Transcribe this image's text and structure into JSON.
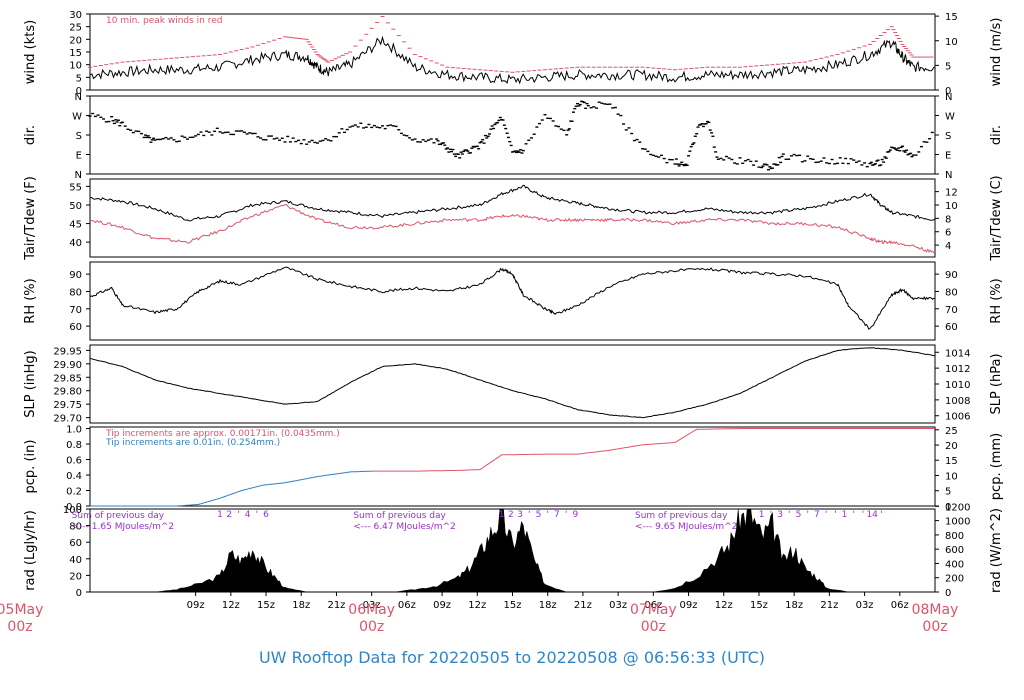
{
  "footer": {
    "title": "UW Rooftop Data for 20220505  to  20220508 @ 06:56:33  (UTC)"
  },
  "colors": {
    "black": "#000000",
    "red": "#df536b",
    "blue": "#2f7fc1",
    "purple": "#9932cc",
    "footer": "#2e86c8"
  },
  "chart_data": [
    {
      "id": "wind",
      "type": "line",
      "ylabel": "wind (kts)",
      "ylabel_right": "wind (m/s)",
      "ylim": [
        0,
        30
      ],
      "ticks_left": [
        0,
        5,
        10,
        15,
        20,
        25,
        30
      ],
      "ticks_right_labels": [
        "0",
        "5",
        "10",
        "15"
      ],
      "ticks_right_at": [
        0,
        9.72,
        19.44,
        29.16
      ],
      "annotation": "10 min. peak winds in red",
      "x": [
        0,
        3,
        6,
        9,
        12,
        15,
        18,
        20,
        21,
        22,
        24,
        27,
        30,
        33,
        36,
        39,
        42,
        45,
        48,
        51,
        54,
        57,
        60,
        63,
        66,
        69,
        72,
        74,
        75,
        76,
        78
      ],
      "series": [
        {
          "color": "black",
          "values": [
            6,
            7,
            8,
            8,
            9,
            12,
            14,
            13,
            9,
            7,
            10,
            20,
            9,
            6,
            5,
            4,
            5,
            6,
            6,
            6,
            5,
            6,
            6,
            7,
            8,
            10,
            14,
            19,
            13,
            9,
            9
          ]
        },
        {
          "color": "red",
          "values": [
            9,
            11,
            12,
            13,
            14,
            17,
            21,
            20,
            14,
            11,
            15,
            29,
            14,
            9,
            8,
            7,
            8,
            9,
            9,
            9,
            8,
            9,
            9,
            10,
            11,
            14,
            18,
            25,
            18,
            13,
            13
          ]
        }
      ]
    },
    {
      "id": "dir",
      "type": "scatter",
      "ylabel": "dir.",
      "ylabel_right": "dir.",
      "ticks_labels": [
        "N",
        "E",
        "S",
        "W",
        "N"
      ],
      "ylim": [
        0,
        360
      ],
      "x": [
        0,
        2,
        3,
        5,
        6,
        8,
        10,
        12,
        14,
        16,
        18,
        20,
        22,
        24,
        26,
        28,
        30,
        32,
        33,
        34,
        35,
        36,
        37,
        38,
        39,
        40,
        42,
        44,
        45,
        46,
        48,
        50,
        52,
        54,
        55,
        56,
        57,
        58,
        60,
        62,
        63,
        64,
        66,
        68,
        70,
        72,
        73,
        74,
        75,
        76,
        78
      ],
      "values": [
        270,
        250,
        230,
        170,
        150,
        160,
        180,
        200,
        190,
        170,
        160,
        150,
        160,
        220,
        220,
        215,
        160,
        150,
        120,
        80,
        110,
        130,
        200,
        260,
        100,
        110,
        270,
        180,
        330,
        310,
        330,
        180,
        80,
        60,
        30,
        200,
        250,
        70,
        60,
        40,
        30,
        80,
        70,
        60,
        60,
        45,
        50,
        110,
        120,
        80,
        200
      ]
    },
    {
      "id": "temp",
      "type": "line",
      "ylabel": "Tair/Tdew (F)",
      "ylabel_right": "Tair/Tdew (C)",
      "ylim": [
        36,
        57
      ],
      "ticks_left": [
        40,
        45,
        50,
        55
      ],
      "ticks_right_labels": [
        "4",
        "6",
        "8",
        "10",
        "12"
      ],
      "ticks_right_at": [
        39.2,
        42.8,
        46.4,
        50,
        53.6
      ],
      "x": [
        0,
        3,
        6,
        9,
        12,
        15,
        18,
        21,
        24,
        27,
        30,
        33,
        36,
        38,
        40,
        42,
        44,
        46,
        48,
        51,
        54,
        57,
        60,
        63,
        66,
        69,
        72,
        73,
        74,
        76,
        78
      ],
      "series": [
        {
          "color": "black",
          "values": [
            52,
            51,
            49,
            46,
            47,
            50,
            51,
            49,
            48,
            47,
            48,
            49,
            50,
            53,
            55,
            52,
            51,
            50,
            49,
            48,
            48,
            49,
            48,
            48,
            49,
            51,
            53,
            50,
            48,
            47,
            46
          ]
        },
        {
          "color": "red",
          "values": [
            46,
            44,
            41,
            40,
            43,
            47,
            50,
            46,
            44,
            44,
            45,
            46,
            46,
            47,
            47,
            46,
            46,
            46,
            46,
            46,
            45,
            46,
            46,
            45,
            45,
            44,
            41,
            40,
            40,
            39,
            37
          ]
        }
      ]
    },
    {
      "id": "rh",
      "type": "line",
      "ylabel": "RH (%)",
      "ylabel_right": "RH (%)",
      "ylim": [
        52,
        97
      ],
      "ticks_left": [
        60,
        70,
        80,
        90
      ],
      "ticks_right_labels": [
        "60",
        "70",
        "80",
        "90"
      ],
      "ticks_right_at": [
        60,
        70,
        80,
        90
      ],
      "x": [
        0,
        2,
        3,
        6,
        8,
        10,
        12,
        14,
        18,
        21,
        24,
        27,
        30,
        33,
        36,
        38,
        39,
        40,
        42,
        43,
        45,
        48,
        51,
        54,
        57,
        60,
        63,
        66,
        69,
        70,
        72,
        74,
        75,
        76,
        78
      ],
      "values": [
        77,
        82,
        72,
        68,
        70,
        80,
        86,
        84,
        94,
        87,
        83,
        80,
        82,
        80,
        84,
        93,
        90,
        78,
        70,
        67,
        72,
        83,
        90,
        92,
        93,
        91,
        90,
        89,
        84,
        72,
        58,
        78,
        81,
        76,
        76
      ]
    },
    {
      "id": "slp",
      "type": "line",
      "ylabel": "SLP (inHg)",
      "ylabel_right": "SLP (hPa)",
      "ylim": [
        29.68,
        29.97
      ],
      "ticks_left_labels": [
        "29.70",
        "29.75",
        "29.80",
        "29.85",
        "29.90",
        "29.95"
      ],
      "ticks_left": [
        29.7,
        29.75,
        29.8,
        29.85,
        29.9,
        29.95
      ],
      "ticks_right_labels": [
        "1006",
        "1008",
        "1010",
        "1012",
        "1014"
      ],
      "ticks_right_at": [
        29.707,
        29.766,
        29.825,
        29.884,
        29.943
      ],
      "x": [
        0,
        3,
        6,
        9,
        12,
        15,
        18,
        21,
        24,
        27,
        30,
        33,
        36,
        39,
        42,
        45,
        48,
        51,
        54,
        57,
        60,
        63,
        66,
        69,
        72,
        75,
        78
      ],
      "values": [
        29.92,
        29.89,
        29.84,
        29.81,
        29.79,
        29.77,
        29.75,
        29.76,
        29.83,
        29.89,
        29.9,
        29.88,
        29.84,
        29.8,
        29.77,
        29.73,
        29.71,
        29.7,
        29.72,
        29.75,
        29.79,
        29.85,
        29.91,
        29.95,
        29.96,
        29.95,
        29.93
      ]
    },
    {
      "id": "pcp",
      "type": "line",
      "ylabel": "pcp. (in)",
      "ylabel_right": "pcp. (mm)",
      "ylim": [
        0,
        1.02
      ],
      "ticks_left_labels": [
        "0.0",
        "0.2",
        "0.4",
        "0.6",
        "0.8",
        "1.0"
      ],
      "ticks_left": [
        0,
        0.2,
        0.4,
        0.6,
        0.8,
        1.0
      ],
      "ticks_right_labels": [
        "0",
        "5",
        "10",
        "15",
        "20",
        "25"
      ],
      "ticks_right_at": [
        0,
        0.197,
        0.394,
        0.591,
        0.787,
        0.984
      ],
      "annotations": [
        "Tip increments are approx. 0.00171in. (0.0435mm.)",
        "Tip increments are 0.01in. (0.254mm.)"
      ],
      "series": [
        {
          "color": "blue",
          "x": [
            0,
            8,
            10,
            12,
            14,
            16,
            18,
            21,
            24,
            26
          ],
          "values": [
            0,
            0,
            0.02,
            0.1,
            0.2,
            0.27,
            0.3,
            0.38,
            0.44,
            0.45
          ]
        },
        {
          "color": "red",
          "x": [
            26,
            30,
            34,
            36,
            38,
            42,
            45,
            48,
            51,
            54,
            56,
            60,
            66,
            78
          ],
          "values": [
            0.45,
            0.45,
            0.46,
            0.47,
            0.66,
            0.67,
            0.67,
            0.72,
            0.79,
            0.82,
            0.99,
            1.0,
            1.0,
            1.0
          ]
        }
      ]
    },
    {
      "id": "rad",
      "type": "area",
      "ylabel": "rad (Lgly/hr)",
      "ylabel_right": "rad (W/m^2)",
      "ylim": [
        0,
        100
      ],
      "ticks_left": [
        0,
        20,
        40,
        60,
        80,
        100
      ],
      "ticks_right_labels": [
        "0",
        "200",
        "400",
        "600",
        "800",
        "1000",
        "1200"
      ],
      "ticks_right_at": [
        0,
        17.2,
        34.4,
        51.6,
        68.8,
        86.0,
        103.2
      ],
      "x": [
        0,
        4,
        6,
        8,
        10,
        12,
        13,
        14,
        15,
        16,
        17,
        18,
        20,
        28,
        30,
        32,
        34,
        35,
        36,
        37,
        38,
        39,
        40,
        41,
        42,
        44,
        52,
        54,
        56,
        58,
        59,
        60,
        61,
        62,
        63,
        64,
        65,
        66,
        67,
        68,
        70,
        78
      ],
      "values": [
        0,
        0,
        0,
        3,
        10,
        20,
        48,
        40,
        55,
        35,
        20,
        5,
        0,
        0,
        3,
        8,
        18,
        30,
        50,
        75,
        95,
        60,
        85,
        40,
        10,
        0,
        0,
        5,
        20,
        45,
        60,
        95,
        100,
        70,
        85,
        40,
        55,
        30,
        20,
        5,
        0,
        0
      ],
      "hour_marks": [
        "1",
        "2",
        "'",
        "4",
        "'",
        "6",
        "1",
        "2",
        "3",
        "'",
        "5",
        "'",
        "7",
        "'",
        "9",
        "1",
        "'",
        "3",
        "'",
        "5",
        "'",
        "7",
        "'",
        "'",
        "1",
        "'",
        "'",
        "14",
        "'"
      ],
      "daily_sums": [
        "Sum of previous day",
        "<--- 1.65 MJoules/m^2",
        "Sum of previous day",
        "<--- 6.47 MJoules/m^2",
        "Sum of previous day",
        "<--- 9.65 MJoules/m^2"
      ]
    }
  ],
  "x_axis": {
    "hour_labels": [
      "09z",
      "12z",
      "15z",
      "18z",
      "21z",
      "03z",
      "06z",
      "09z",
      "12z",
      "15z",
      "18z",
      "21z",
      "03z",
      "06z",
      "09z",
      "12z",
      "15z",
      "18z",
      "21z",
      "03z",
      "06z"
    ],
    "day_labels": [
      "05May",
      "06May",
      "07May",
      "08May"
    ],
    "day_sublabel": "00z"
  }
}
